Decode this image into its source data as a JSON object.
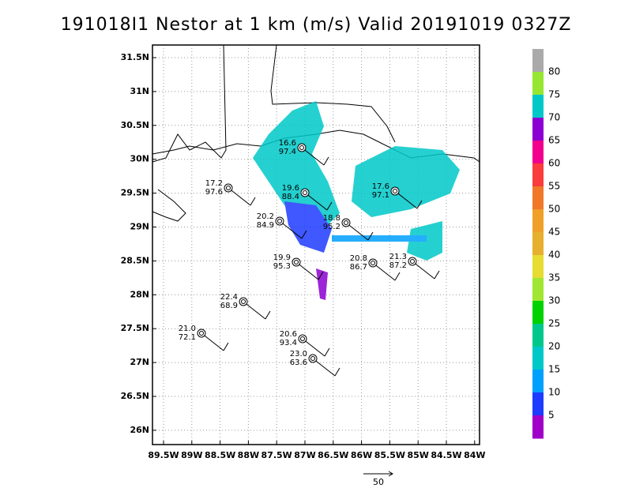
{
  "title": "191018I1 Nestor at 1 km (m/s) Valid 20191019 0327Z",
  "lat_labels": [
    "31.5N",
    "31N",
    "30.5N",
    "30N",
    "29.5N",
    "29N",
    "28.5N",
    "28N",
    "27.5N",
    "27N",
    "26.5N",
    "26N"
  ],
  "lon_labels": [
    "89.5W",
    "89W",
    "88.5W",
    "88W",
    "87.5W",
    "87W",
    "86.5W",
    "86W",
    "85.5W",
    "85W",
    "84.5W",
    "84W"
  ],
  "colorbar": {
    "ticks": [
      80,
      75,
      70,
      65,
      60,
      55,
      50,
      45,
      40,
      35,
      30,
      25,
      20,
      15,
      10,
      5
    ],
    "colors": [
      "#aaaaaa",
      "#96e632",
      "#00c8c8",
      "#8c00d2",
      "#f0008c",
      "#fa3c3c",
      "#f07828",
      "#f0a028",
      "#e6af2d",
      "#e6dc32",
      "#a0e632",
      "#00d200",
      "#00c88c",
      "#00c8c8",
      "#00a0ff",
      "#1e3cff",
      "#a000c8"
    ]
  },
  "stations": [
    {
      "speed": "16.6",
      "pressure": "97.4"
    },
    {
      "speed": "17.2",
      "pressure": "97.6"
    },
    {
      "speed": "19.6",
      "pressure": "88.4"
    },
    {
      "speed": "17.6",
      "pressure": "97.1"
    },
    {
      "speed": "20.2",
      "pressure": "84.9"
    },
    {
      "speed": "18.8",
      "pressure": "95.2"
    },
    {
      "speed": "19.9",
      "pressure": "95.3"
    },
    {
      "speed": "20.8",
      "pressure": "86.7"
    },
    {
      "speed": "21.3",
      "pressure": "87.2"
    },
    {
      "speed": "22.4",
      "pressure": "68.9"
    },
    {
      "speed": "20.6",
      "pressure": "93.4"
    },
    {
      "speed": "21.0",
      "pressure": "72.1"
    },
    {
      "speed": "23.0",
      "pressure": "63.6"
    }
  ],
  "scale_label": "50"
}
